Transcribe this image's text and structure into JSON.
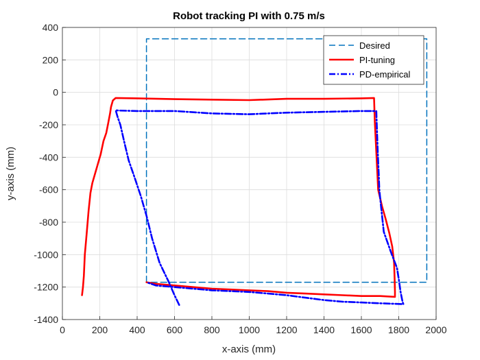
{
  "chart_data": {
    "type": "line",
    "title": "Robot tracking PI with 0.75 m/s",
    "xlabel": "x-axis (mm)",
    "ylabel": "y-axis (mm)",
    "xlim": [
      0,
      2000
    ],
    "ylim": [
      -1400,
      400
    ],
    "xticks": [
      0,
      200,
      400,
      600,
      800,
      1000,
      1200,
      1400,
      1600,
      1800,
      2000
    ],
    "yticks": [
      -1400,
      -1200,
      -1000,
      -800,
      -600,
      -400,
      -200,
      0,
      200,
      400
    ],
    "grid": true,
    "legend_position": "top-right",
    "series": [
      {
        "name": "Desired",
        "color": "#0072BD",
        "style": "dashed",
        "x": [
          450,
          450,
          1950,
          1950,
          450
        ],
        "y": [
          -1170,
          330,
          330,
          -1170,
          -1170
        ]
      },
      {
        "name": "PI-tuning",
        "color": "#FF0000",
        "style": "solid",
        "x": [
          105,
          110,
          115,
          120,
          130,
          140,
          150,
          160,
          175,
          190,
          205,
          220,
          235,
          245,
          255,
          260,
          270,
          285,
          400,
          600,
          800,
          1000,
          1200,
          1400,
          1600,
          1668,
          1672,
          1690,
          1710,
          1730,
          1750,
          1765,
          1775,
          1778,
          1780,
          1780,
          1700,
          1600,
          1500,
          1400,
          1300,
          1200,
          1100,
          1000,
          900,
          800,
          700,
          600,
          500,
          450
        ],
        "y": [
          -1250,
          -1200,
          -1130,
          -1000,
          -870,
          -730,
          -620,
          -560,
          -500,
          -440,
          -380,
          -300,
          -250,
          -190,
          -130,
          -90,
          -50,
          -35,
          -37,
          -42,
          -45,
          -48,
          -40,
          -40,
          -37,
          -35,
          -180,
          -600,
          -700,
          -780,
          -870,
          -950,
          -1050,
          -1150,
          -1230,
          -1260,
          -1255,
          -1255,
          -1250,
          -1245,
          -1240,
          -1235,
          -1225,
          -1220,
          -1215,
          -1210,
          -1200,
          -1190,
          -1180,
          -1170
        ]
      },
      {
        "name": "PD-empirical",
        "color": "#0000FF",
        "style": "dashdot",
        "x": [
          625,
          600,
          570,
          520,
          480,
          450,
          420,
          385,
          355,
          330,
          310,
          295,
          285,
          300,
          400,
          600,
          800,
          1000,
          1200,
          1400,
          1600,
          1680,
          1682,
          1688,
          1693,
          1696,
          1705,
          1720,
          1760,
          1790,
          1800,
          1810,
          1820,
          1825,
          1700,
          1600,
          1500,
          1400,
          1300,
          1200,
          1100,
          1000,
          900,
          800,
          700,
          600,
          500,
          450
        ],
        "y": [
          -1310,
          -1250,
          -1170,
          -1050,
          -900,
          -760,
          -640,
          -520,
          -420,
          -300,
          -200,
          -150,
          -110,
          -112,
          -115,
          -115,
          -130,
          -135,
          -125,
          -120,
          -115,
          -115,
          -180,
          -380,
          -500,
          -600,
          -700,
          -860,
          -990,
          -1080,
          -1150,
          -1230,
          -1290,
          -1305,
          -1300,
          -1295,
          -1290,
          -1280,
          -1265,
          -1250,
          -1240,
          -1230,
          -1225,
          -1220,
          -1210,
          -1200,
          -1190,
          -1170
        ]
      }
    ]
  }
}
